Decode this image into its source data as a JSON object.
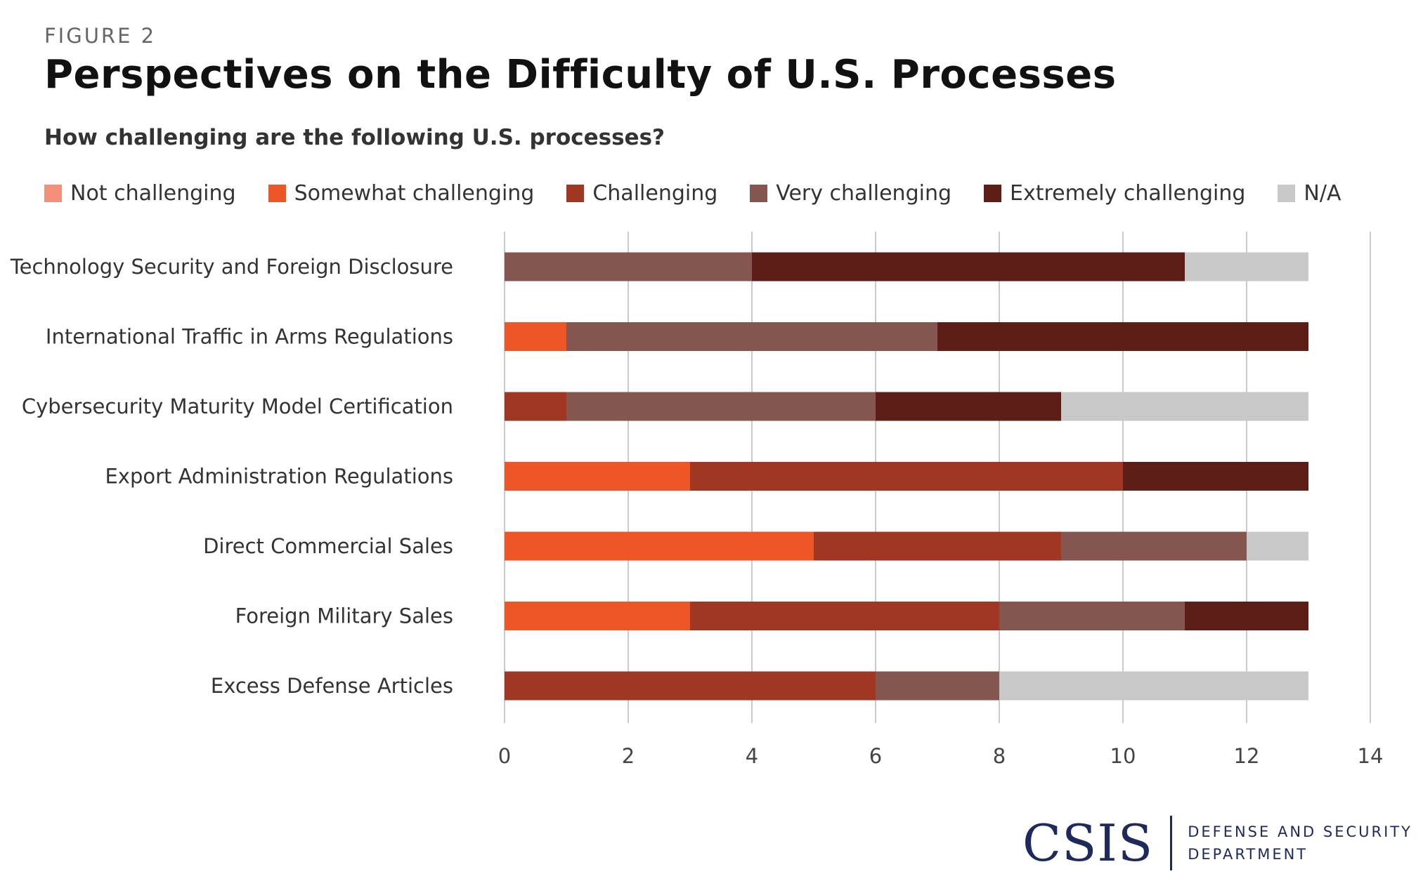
{
  "figure_label": "FIGURE 2",
  "title": "Perspectives on the Difficulty of U.S. Processes",
  "subtitle": "How challenging are the following U.S. processes?",
  "logo": {
    "mark": "CSIS",
    "dept_line1": "DEFENSE AND SECURITY",
    "dept_line2": "DEPARTMENT"
  },
  "colors": {
    "not_challenging": "#f4907a",
    "somewhat_challenging": "#ee5527",
    "challenging": "#a03722",
    "very_challenging": "#84564f",
    "extremely_challenging": "#5c1e17",
    "na": "#c8c8c8",
    "gridline": "#b8b8b8",
    "brand": "#1f2a5c"
  },
  "chart_data": {
    "type": "bar",
    "orientation": "horizontal",
    "stacked": true,
    "categories": [
      "Technology Security and Foreign Disclosure",
      "International Traffic in Arms Regulations",
      "Cybersecurity Maturity Model Certification",
      "Export Administration Regulations",
      "Direct Commercial Sales",
      "Foreign Military Sales",
      "Excess Defense Articles"
    ],
    "series": [
      {
        "name": "Not challenging",
        "color": "#f4907a",
        "values": [
          0,
          0,
          0,
          0,
          0,
          0,
          0
        ]
      },
      {
        "name": "Somewhat challenging",
        "color": "#ee5527",
        "values": [
          0,
          1,
          0,
          3,
          5,
          3,
          0
        ]
      },
      {
        "name": "Challenging",
        "color": "#a03722",
        "values": [
          0,
          0,
          1,
          7,
          4,
          5,
          6
        ]
      },
      {
        "name": "Very challenging",
        "color": "#84564f",
        "values": [
          4,
          6,
          5,
          0,
          3,
          3,
          2
        ]
      },
      {
        "name": "Extremely challenging",
        "color": "#5c1e17",
        "values": [
          7,
          6,
          3,
          3,
          0,
          2,
          0
        ]
      },
      {
        "name": "N/A",
        "color": "#c8c8c8",
        "values": [
          2,
          0,
          4,
          0,
          1,
          0,
          5
        ]
      }
    ],
    "xlim": [
      0,
      14
    ],
    "xticks": [
      0,
      2,
      4,
      6,
      8,
      10,
      12,
      14
    ],
    "grid": true,
    "legend_position": "top"
  }
}
